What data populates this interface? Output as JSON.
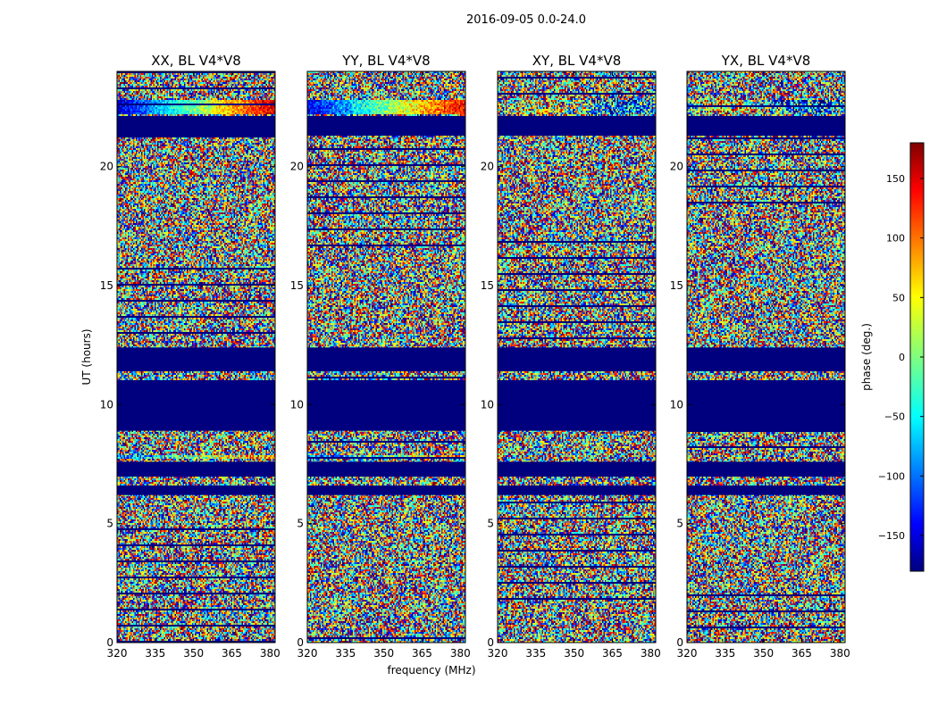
{
  "figure_title": "2016-09-05 0.0-24.0",
  "colors": {
    "background_band": "#00007f",
    "jet": [
      "#00007f",
      "#0000ff",
      "#007fff",
      "#00ffff",
      "#7fff7f",
      "#ffff00",
      "#ff7f00",
      "#ff0000",
      "#7f0000"
    ]
  },
  "chart_data": [
    {
      "type": "heatmap",
      "title": "XX, BL V4*V8",
      "xlabel": "",
      "ylabel": "UT (hours)",
      "xlim": [
        320,
        382
      ],
      "ylim": [
        0,
        24
      ],
      "xticks": [
        "320",
        "335",
        "350",
        "365",
        "380"
      ],
      "yticks": [
        "0",
        "5",
        "10",
        "15",
        "20"
      ],
      "value": "phase (deg.)",
      "flagged_bands_hours": [
        [
          8.9,
          11.0
        ],
        [
          11.4,
          12.4
        ],
        [
          21.3,
          22.1
        ],
        [
          7.0,
          7.6
        ],
        [
          6.2,
          6.6
        ]
      ],
      "coherent_bands_hours": [
        [
          22.2,
          22.8,
          320,
          382,
          0.85
        ],
        [
          10.8,
          11.0,
          320,
          382,
          0.6
        ],
        [
          7.7,
          7.9,
          320,
          382,
          0.55
        ],
        [
          15.6,
          15.7,
          320,
          382,
          0.15
        ]
      ]
    },
    {
      "type": "heatmap",
      "title": "YY, BL V4*V8",
      "xlabel": "frequency (MHz)",
      "ylabel": "",
      "xlim": [
        320,
        382
      ],
      "ylim": [
        0,
        24
      ],
      "xticks": [
        "320",
        "335",
        "350",
        "365",
        "380"
      ],
      "yticks": [
        "0",
        "5",
        "10",
        "15",
        "20"
      ],
      "value": "phase (deg.)",
      "flagged_bands_hours": [
        [
          8.9,
          11.0
        ],
        [
          11.4,
          12.4
        ],
        [
          21.3,
          22.1
        ],
        [
          7.0,
          7.6
        ],
        [
          6.2,
          6.6
        ]
      ],
      "coherent_bands_hours": [
        [
          22.2,
          22.8,
          320,
          382,
          0.8
        ],
        [
          10.8,
          11.0,
          320,
          382,
          0.6
        ],
        [
          7.7,
          7.9,
          320,
          382,
          0.55
        ]
      ]
    },
    {
      "type": "heatmap",
      "title": "XY, BL V4*V8",
      "xlabel": "",
      "ylabel": "",
      "xlim": [
        320,
        382
      ],
      "ylim": [
        0,
        24
      ],
      "xticks": [
        "320",
        "335",
        "350",
        "365",
        "380"
      ],
      "yticks": [
        "0",
        "5",
        "10",
        "15",
        "20"
      ],
      "value": "phase (deg.)",
      "flagged_bands_hours": [
        [
          8.9,
          11.0
        ],
        [
          11.4,
          12.4
        ],
        [
          21.3,
          22.1
        ],
        [
          7.0,
          7.6
        ],
        [
          6.2,
          6.6
        ]
      ],
      "coherent_bands_hours": [
        [
          22.2,
          22.8,
          320,
          382,
          0.35
        ]
      ]
    },
    {
      "type": "heatmap",
      "title": "YX, BL V4*V8",
      "xlabel": "",
      "ylabel": "",
      "xlim": [
        320,
        382
      ],
      "ylim": [
        0,
        24
      ],
      "xticks": [
        "320",
        "335",
        "350",
        "365",
        "380"
      ],
      "yticks": [
        "0",
        "5",
        "10",
        "15",
        "20"
      ],
      "value": "phase (deg.)",
      "flagged_bands_hours": [
        [
          8.9,
          11.0
        ],
        [
          11.4,
          12.4
        ],
        [
          21.3,
          22.1
        ],
        [
          7.0,
          7.6
        ],
        [
          6.2,
          6.6
        ]
      ],
      "coherent_bands_hours": [
        [
          22.2,
          22.8,
          320,
          382,
          0.35
        ]
      ]
    }
  ],
  "colorbar": {
    "label": "phase (deg.)",
    "range": [
      -180,
      180
    ],
    "ticks": [
      "150",
      "100",
      "50",
      "0",
      "−50",
      "−100",
      "−150"
    ],
    "tick_values": [
      150,
      100,
      50,
      0,
      -50,
      -100,
      -150
    ]
  }
}
